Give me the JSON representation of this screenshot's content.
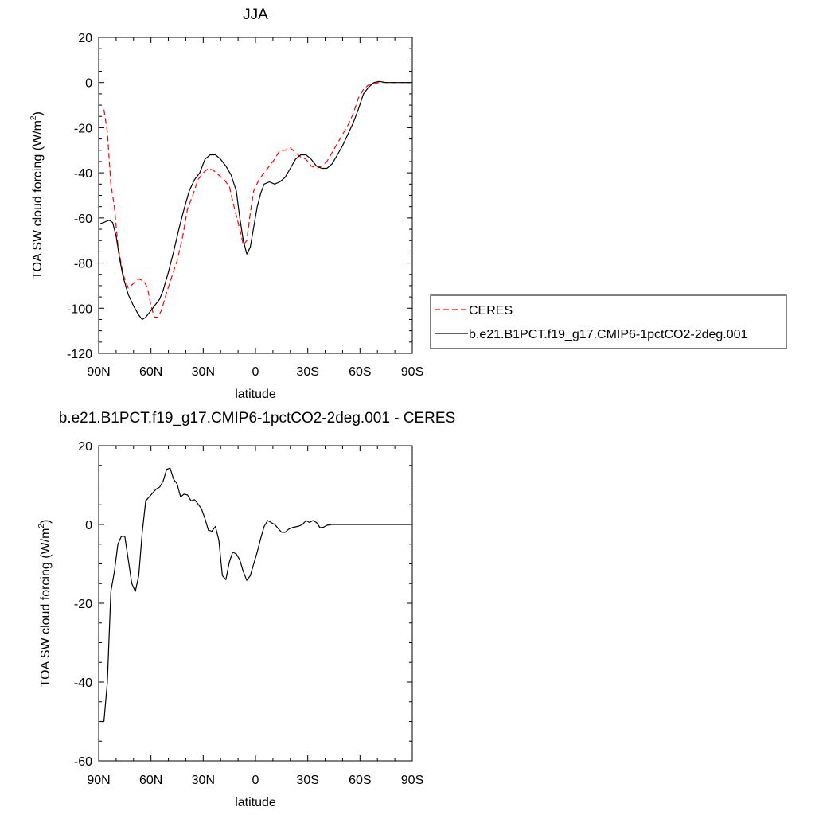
{
  "chart_data": [
    {
      "type": "line",
      "title": "JJA",
      "xlabel": "latitude",
      "ylabel": "TOA SW cloud forcing (W/m",
      "ylabel_sup": "2",
      "ylabel_close": ")",
      "xlim": [
        90,
        -90
      ],
      "ylim": [
        -120,
        20
      ],
      "x_ticks": [
        90,
        60,
        30,
        0,
        -30,
        -60,
        -90
      ],
      "x_tick_labels": [
        "90N",
        "60N",
        "30N",
        "0",
        "30S",
        "60S",
        "90S"
      ],
      "y_ticks": [
        20,
        0,
        -20,
        -40,
        -60,
        -80,
        -100,
        -120
      ],
      "y_tick_labels": [
        "20",
        "0",
        "-20",
        "-40",
        "-60",
        "-80",
        "-100",
        "-120"
      ],
      "legend": {
        "placement": "right",
        "entries": [
          "CERES",
          "b.e21.B1PCT.f19_g17.CMIP6-1pctCO2-2deg.001"
        ]
      },
      "series": [
        {
          "name": "CERES",
          "color": "#ff0000",
          "dash": "dashed",
          "points": [
            [
              87,
              -12
            ],
            [
              85,
              -22
            ],
            [
              83,
              -45
            ],
            [
              81,
              -55
            ],
            [
              79,
              -72
            ],
            [
              76,
              -85
            ],
            [
              73,
              -91
            ],
            [
              70,
              -89
            ],
            [
              67,
              -87
            ],
            [
              64,
              -88
            ],
            [
              62,
              -91
            ],
            [
              60,
              -99
            ],
            [
              58,
              -104
            ],
            [
              56,
              -104
            ],
            [
              54,
              -101
            ],
            [
              51,
              -93
            ],
            [
              48,
              -86
            ],
            [
              45,
              -79
            ],
            [
              42,
              -69
            ],
            [
              39,
              -56
            ],
            [
              36,
              -50
            ],
            [
              33,
              -43
            ],
            [
              30,
              -40
            ],
            [
              27,
              -38
            ],
            [
              24,
              -39
            ],
            [
              21,
              -41
            ],
            [
              18,
              -43
            ],
            [
              15,
              -46
            ],
            [
              12,
              -56
            ],
            [
              9,
              -65
            ],
            [
              7,
              -72
            ],
            [
              5,
              -70
            ],
            [
              3,
              -58
            ],
            [
              1,
              -48
            ],
            [
              -2,
              -43
            ],
            [
              -5,
              -40
            ],
            [
              -8,
              -37
            ],
            [
              -11,
              -34
            ],
            [
              -14,
              -30
            ],
            [
              -17,
              -30
            ],
            [
              -20,
              -29
            ],
            [
              -23,
              -31
            ],
            [
              -26,
              -33
            ],
            [
              -29,
              -34
            ],
            [
              -32,
              -37
            ],
            [
              -35,
              -38
            ],
            [
              -38,
              -37
            ],
            [
              -41,
              -35
            ],
            [
              -44,
              -31
            ],
            [
              -47,
              -27
            ],
            [
              -50,
              -23
            ],
            [
              -53,
              -19
            ],
            [
              -56,
              -14
            ],
            [
              -59,
              -7
            ],
            [
              -62,
              -3
            ],
            [
              -65,
              -1
            ],
            [
              -68,
              -0.5
            ],
            [
              -71,
              0
            ],
            [
              -75,
              0
            ],
            [
              -80,
              0
            ],
            [
              -85,
              0
            ],
            [
              -89,
              0
            ]
          ]
        },
        {
          "name": "b.e21.B1PCT.f19_g17.CMIP6-1pctCO2-2deg.001",
          "color": "#000000",
          "dash": "solid",
          "points": [
            [
              89,
              -62.5
            ],
            [
              87,
              -62
            ],
            [
              84,
              -61
            ],
            [
              82,
              -62
            ],
            [
              80,
              -68
            ],
            [
              78,
              -78
            ],
            [
              76,
              -86
            ],
            [
              73,
              -94
            ],
            [
              70,
              -99
            ],
            [
              67,
              -103
            ],
            [
              65,
              -105
            ],
            [
              63,
              -104
            ],
            [
              61,
              -102
            ],
            [
              58,
              -99
            ],
            [
              55,
              -96
            ],
            [
              53,
              -92
            ],
            [
              50,
              -84
            ],
            [
              47,
              -75
            ],
            [
              44,
              -65
            ],
            [
              41,
              -56
            ],
            [
              38,
              -48
            ],
            [
              35,
              -43
            ],
            [
              32,
              -40
            ],
            [
              29,
              -34
            ],
            [
              26,
              -32
            ],
            [
              23,
              -32
            ],
            [
              20,
              -34
            ],
            [
              17,
              -37
            ],
            [
              14,
              -41
            ],
            [
              11,
              -48
            ],
            [
              9,
              -60
            ],
            [
              7,
              -70
            ],
            [
              5,
              -76
            ],
            [
              3,
              -73
            ],
            [
              1,
              -64
            ],
            [
              -1,
              -55
            ],
            [
              -3,
              -49
            ],
            [
              -5,
              -45
            ],
            [
              -8,
              -44
            ],
            [
              -11,
              -45
            ],
            [
              -14,
              -44
            ],
            [
              -17,
              -42
            ],
            [
              -20,
              -38
            ],
            [
              -23,
              -34
            ],
            [
              -26,
              -32
            ],
            [
              -29,
              -32
            ],
            [
              -32,
              -34
            ],
            [
              -35,
              -37
            ],
            [
              -38,
              -38
            ],
            [
              -41,
              -38
            ],
            [
              -44,
              -36
            ],
            [
              -47,
              -32
            ],
            [
              -50,
              -28
            ],
            [
              -53,
              -23
            ],
            [
              -56,
              -18
            ],
            [
              -59,
              -12
            ],
            [
              -62,
              -5
            ],
            [
              -65,
              -2
            ],
            [
              -68,
              0
            ],
            [
              -71,
              0.5
            ],
            [
              -75,
              0
            ],
            [
              -80,
              0
            ],
            [
              -85,
              0
            ],
            [
              -89,
              0
            ]
          ]
        }
      ]
    },
    {
      "type": "line",
      "title": "b.e21.B1PCT.f19_g17.CMIP6-1pctCO2-2deg.001 - CERES",
      "xlabel": "latitude",
      "ylabel": "TOA SW cloud forcing (W/m",
      "ylabel_sup": "2",
      "ylabel_close": ")",
      "xlim": [
        90,
        -90
      ],
      "ylim": [
        -60,
        20
      ],
      "x_ticks": [
        90,
        60,
        30,
        0,
        -30,
        -60,
        -90
      ],
      "x_tick_labels": [
        "90N",
        "60N",
        "30N",
        "0",
        "30S",
        "60S",
        "90S"
      ],
      "y_ticks": [
        20,
        0,
        -20,
        -40,
        -60
      ],
      "y_tick_labels": [
        "20",
        "0",
        "-20",
        "-40",
        "-60"
      ],
      "series": [
        {
          "color": "#000000",
          "dash": "solid",
          "points": [
            [
              89,
              -50
            ],
            [
              87,
              -50
            ],
            [
              85,
              -40
            ],
            [
              83,
              -17
            ],
            [
              81,
              -12
            ],
            [
              79,
              -5
            ],
            [
              77,
              -3
            ],
            [
              75,
              -3
            ],
            [
              73,
              -9
            ],
            [
              71,
              -15
            ],
            [
              69,
              -17
            ],
            [
              67,
              -13
            ],
            [
              65,
              -2
            ],
            [
              63,
              6
            ],
            [
              61,
              7
            ],
            [
              59,
              8
            ],
            [
              57,
              9
            ],
            [
              55,
              9.5
            ],
            [
              53,
              11
            ],
            [
              51,
              14
            ],
            [
              49,
              14.3
            ],
            [
              47,
              11.5
            ],
            [
              45,
              10.3
            ],
            [
              43,
              7
            ],
            [
              41,
              7.7
            ],
            [
              39,
              7.5
            ],
            [
              37,
              6
            ],
            [
              35,
              6.3
            ],
            [
              33,
              5.2
            ],
            [
              31,
              4
            ],
            [
              29,
              1.5
            ],
            [
              27,
              -1.5
            ],
            [
              25,
              -1.7
            ],
            [
              23,
              -0.5
            ],
            [
              21,
              -4
            ],
            [
              19,
              -13
            ],
            [
              17,
              -14
            ],
            [
              15,
              -9.5
            ],
            [
              13,
              -7
            ],
            [
              11,
              -7.5
            ],
            [
              9,
              -9
            ],
            [
              7,
              -12
            ],
            [
              5,
              -14.2
            ],
            [
              3,
              -13
            ],
            [
              1,
              -10
            ],
            [
              -1,
              -7
            ],
            [
              -3,
              -3.5
            ],
            [
              -5,
              -0.5
            ],
            [
              -7,
              1
            ],
            [
              -9,
              0.5
            ],
            [
              -11,
              0
            ],
            [
              -13,
              -1
            ],
            [
              -15,
              -2
            ],
            [
              -17,
              -2
            ],
            [
              -19,
              -1.2
            ],
            [
              -21,
              -0.8
            ],
            [
              -23,
              -0.6
            ],
            [
              -25,
              -0.4
            ],
            [
              -27,
              0
            ],
            [
              -29,
              1
            ],
            [
              -31,
              0.5
            ],
            [
              -33,
              1
            ],
            [
              -35,
              0.5
            ],
            [
              -37,
              -0.8
            ],
            [
              -39,
              -0.7
            ],
            [
              -41,
              -0.2
            ],
            [
              -44,
              0
            ],
            [
              -50,
              0
            ],
            [
              -60,
              0
            ],
            [
              -70,
              0
            ],
            [
              -80,
              0
            ],
            [
              -89,
              0
            ]
          ]
        }
      ]
    }
  ]
}
